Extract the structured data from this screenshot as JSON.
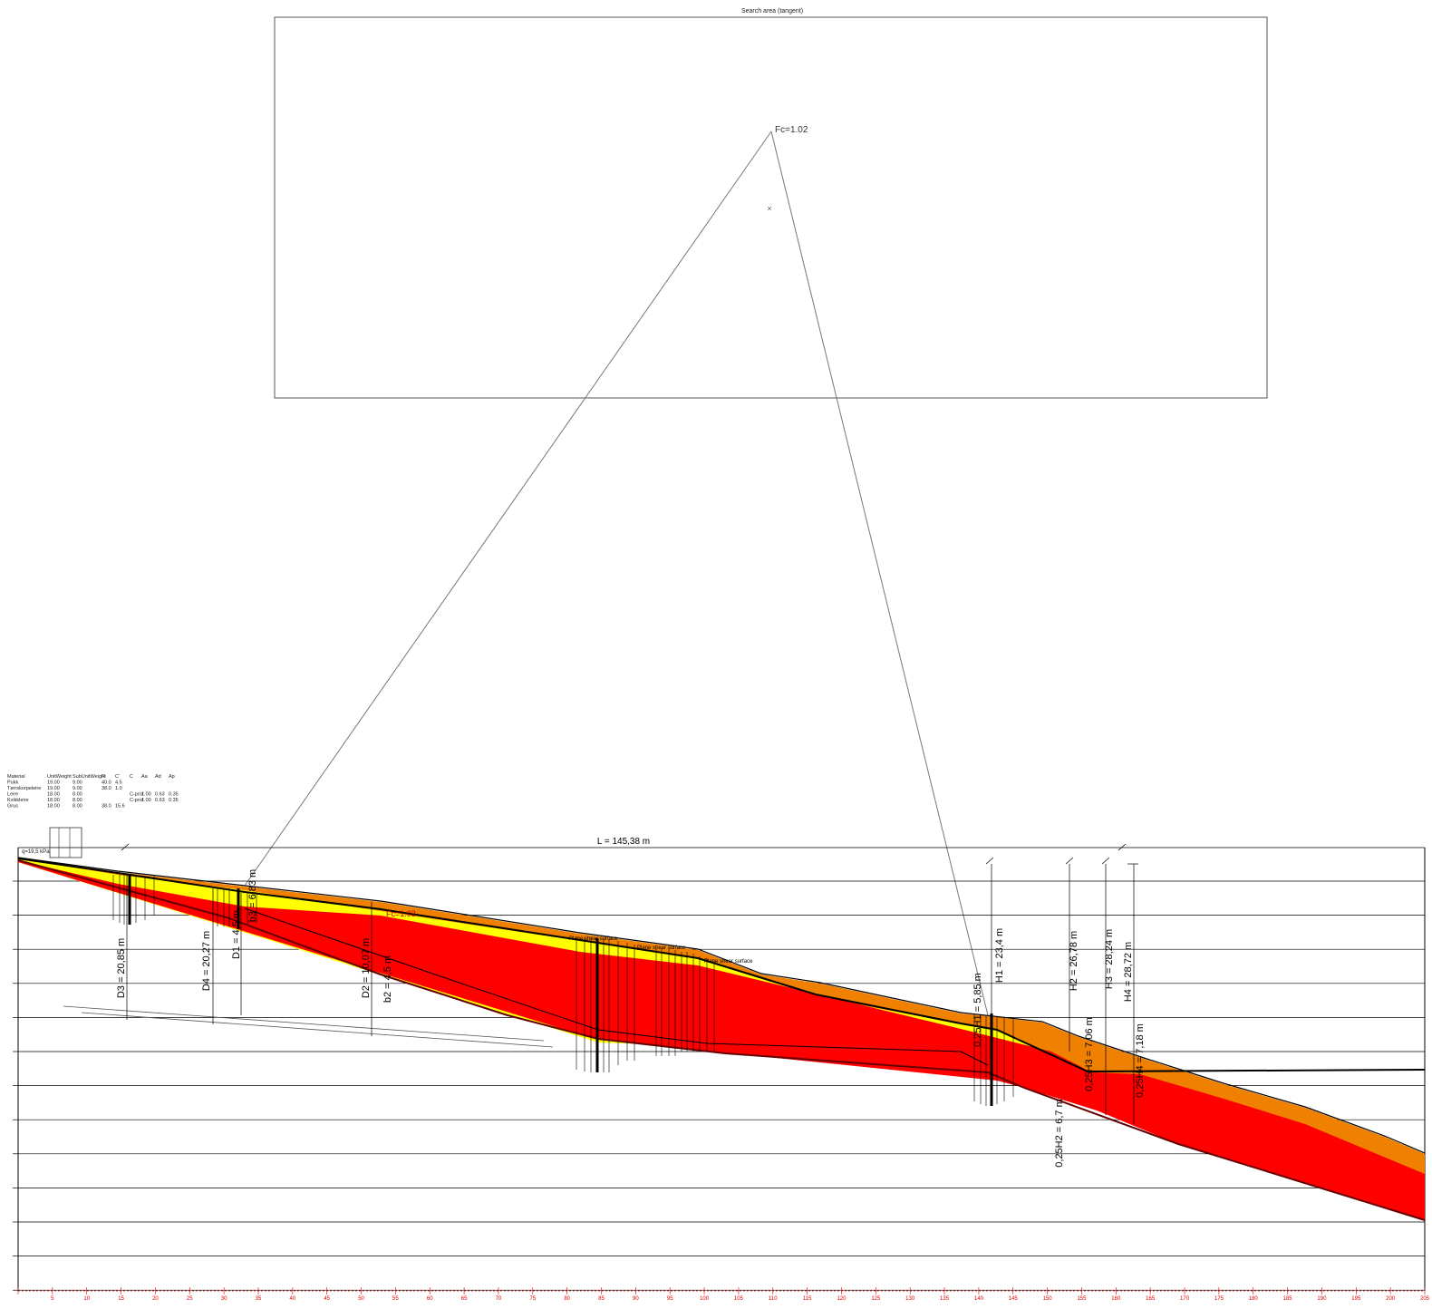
{
  "search_area": {
    "title": "Search area (tangent)",
    "fc_label": "Fc=1.02"
  },
  "section": {
    "length_label": "L = 145,38 m",
    "load_label": "q=19,5 kPa",
    "critical_fc_label": "Fc=1.03",
    "plane_shear_labels": [
      "Plane shear surface",
      "Plane shear surface",
      "Plane shear surface"
    ],
    "dimension_labels": [
      "D3 = 20,85 m",
      "D4 = 20,27 m",
      "D1 = 4,5 m",
      "b3 = 6,83 m",
      "D2 = 10,07 m",
      "b2 = 4,5 m",
      "H1 = 23,4 m",
      "0,25H1 = 5,85 m",
      "H2 = 26,78 m",
      "0,25H2 = 6,7 m",
      "H3 = 28,24 m",
      "0,25H3 = 7,06 m",
      "H4 = 28,72 m",
      "0,25H4 = 7,18 m"
    ]
  },
  "materials_table": {
    "headers": [
      "Material",
      "UnitWeight",
      "SubUnitWeight",
      "Fi",
      "C'",
      "C",
      "Aa",
      "Ad",
      "Ap"
    ],
    "rows": [
      [
        "Pukk",
        "19.00",
        "9.00",
        "40.0",
        "4.5",
        "",
        "",
        "",
        ""
      ],
      [
        "Tørrskorpeleire",
        "19.00",
        "9.00",
        "38.0",
        "1.0",
        "",
        "",
        "",
        ""
      ],
      [
        "Leire",
        "18.00",
        "8.00",
        "",
        "",
        "C-prof",
        "1.00",
        "0.63",
        "0.35"
      ],
      [
        "Kvikkleire",
        "18.00",
        "8.00",
        "",
        "",
        "C-prof",
        "1.00",
        "0.63",
        "0.35"
      ],
      [
        "Grus",
        "18.00",
        "8.00",
        "38.0",
        "15.6",
        "",
        "",
        "",
        ""
      ]
    ]
  },
  "chart_data": {
    "type": "diagram",
    "x_axis": {
      "ticks": [
        0,
        5,
        10,
        15,
        20,
        25,
        30,
        35,
        40,
        45,
        50,
        55,
        60,
        65,
        70,
        75,
        80,
        85,
        90,
        95,
        100,
        105,
        110,
        115,
        120,
        125,
        130,
        135,
        140,
        145,
        150,
        155,
        160,
        165,
        170,
        175,
        180,
        185,
        190,
        195,
        200,
        205
      ],
      "range": [
        0,
        205
      ]
    },
    "layers": [
      {
        "name": "Tørrskorpeleire",
        "color": "#f08000"
      },
      {
        "name": "Pukk",
        "color": "#ffff00"
      },
      {
        "name": "Kvikkleire",
        "color": "#ff0000"
      }
    ]
  }
}
